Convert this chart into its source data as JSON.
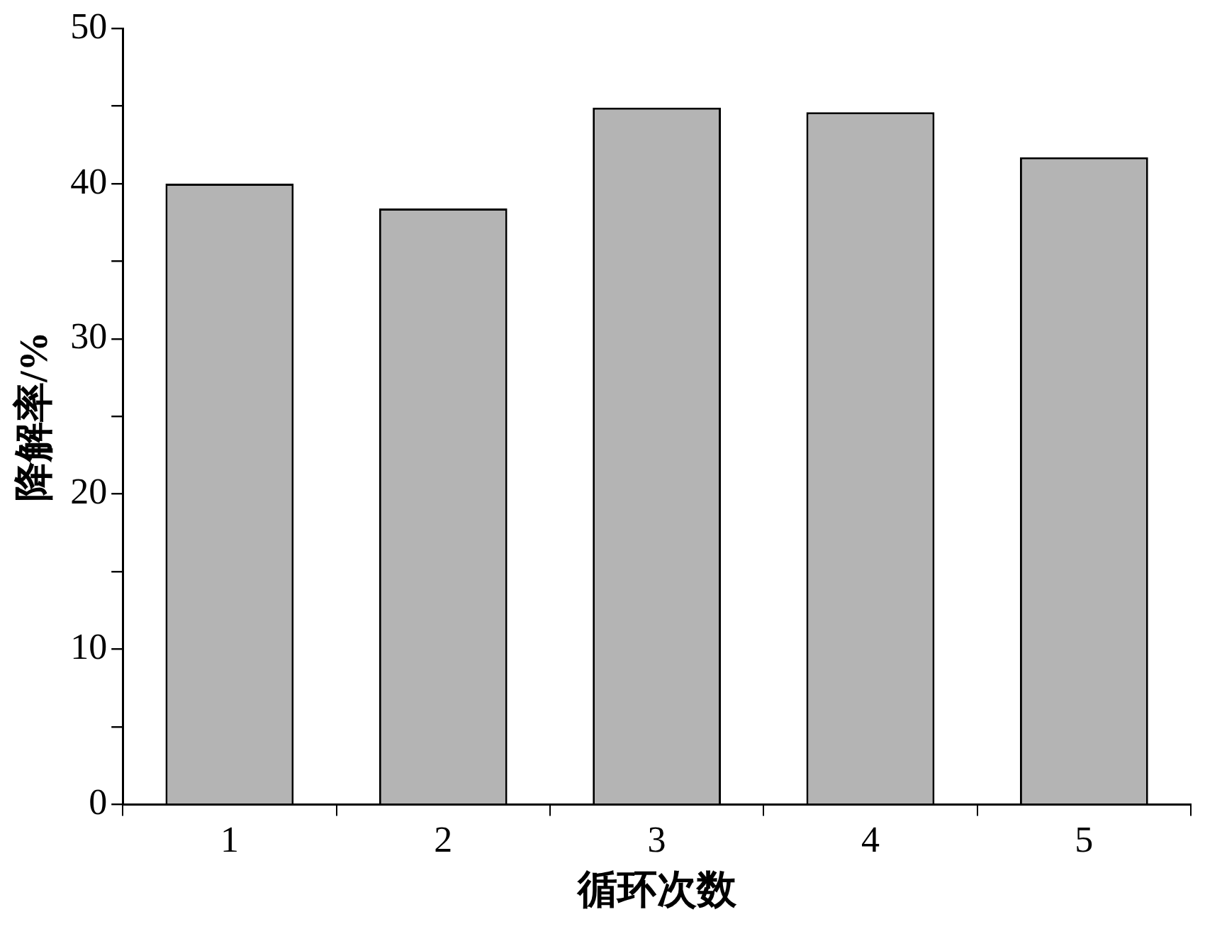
{
  "chart_data": {
    "type": "bar",
    "xlabel": "循环次数",
    "ylabel": "降解率/%",
    "categories": [
      "1",
      "2",
      "3",
      "4",
      "5"
    ],
    "values": [
      40.0,
      38.4,
      44.9,
      44.6,
      41.7
    ],
    "color": "#b4b4b4",
    "ylim": [
      0,
      50
    ],
    "yticks": [
      0,
      {
        "value": 5,
        "label": null
      },
      10,
      {
        "value": 15,
        "label": null
      },
      20,
      {
        "value": 25,
        "label": null
      },
      30,
      {
        "value": 35,
        "label": null
      },
      40,
      {
        "value": 45,
        "label": null
      },
      50
    ],
    "grid": false,
    "legend": false
  }
}
